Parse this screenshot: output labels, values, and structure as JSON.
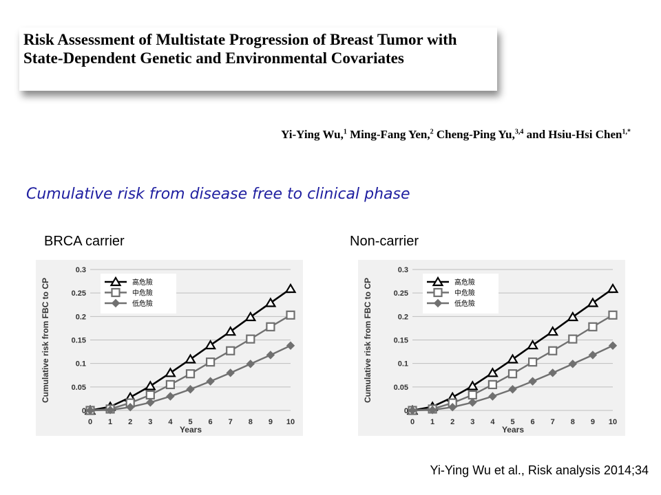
{
  "paper": {
    "title": "Risk Assessment of Multistate Progression of Breast Tumor with State-Dependent Genetic and Environmental Covariates",
    "authors": [
      {
        "name": "Yi-Ying Wu,",
        "sup": "1"
      },
      {
        "name": "Ming-Fang Yen,",
        "sup": "2"
      },
      {
        "name": "Cheng-Ping Yu,",
        "sup": "3,4"
      },
      {
        "name": "and Hsiu-Hsi Chen",
        "sup": "1,*"
      }
    ]
  },
  "subtitle": "Cumulative risk from disease free to clinical phase",
  "citation": "Yi-Ying Wu et al., Risk analysis 2014;34",
  "chart_data": [
    {
      "type": "line",
      "title": "BRCA carrier",
      "xlabel": "Years",
      "ylabel": "Cumulative risk from FBC to CP",
      "x": [
        0,
        1,
        2,
        3,
        4,
        5,
        6,
        7,
        8,
        9,
        10
      ],
      "xlim": [
        0,
        10
      ],
      "ylim": [
        0,
        0.3
      ],
      "yticks": [
        "0",
        "0.05",
        "0.1",
        "0.15",
        "0.2",
        "0.25",
        "0.3"
      ],
      "grid": true,
      "legend": "top-left",
      "series": [
        {
          "name": "高危險",
          "marker": "triangle",
          "color": "#000000",
          "values": [
            0,
            0.008,
            0.028,
            0.052,
            0.08,
            0.109,
            0.139,
            0.168,
            0.199,
            0.229,
            0.259
          ]
        },
        {
          "name": "中危險",
          "marker": "square",
          "color": "#707070",
          "values": [
            0,
            0.003,
            0.016,
            0.033,
            0.055,
            0.078,
            0.103,
            0.127,
            0.152,
            0.178,
            0.203
          ]
        },
        {
          "name": "低危險",
          "marker": "diamond",
          "color": "#707070",
          "values": [
            0,
            0.001,
            0.007,
            0.017,
            0.03,
            0.045,
            0.062,
            0.08,
            0.099,
            0.118,
            0.138
          ]
        }
      ]
    },
    {
      "type": "line",
      "title": "Non-carrier",
      "xlabel": "Years",
      "ylabel": "Cumulative risk from FBC to CP",
      "x": [
        0,
        1,
        2,
        3,
        4,
        5,
        6,
        7,
        8,
        9,
        10
      ],
      "xlim": [
        0,
        10
      ],
      "ylim": [
        0,
        0.3
      ],
      "yticks": [
        "0",
        "0.05",
        "0.1",
        "0.15",
        "0.2",
        "0.25",
        "0.3"
      ],
      "grid": true,
      "legend": "top-left",
      "series": [
        {
          "name": "高危險",
          "marker": "triangle",
          "color": "#000000",
          "values": [
            0,
            0.008,
            0.028,
            0.052,
            0.08,
            0.109,
            0.139,
            0.168,
            0.199,
            0.229,
            0.259
          ]
        },
        {
          "name": "中危險",
          "marker": "square",
          "color": "#707070",
          "values": [
            0,
            0.003,
            0.016,
            0.033,
            0.055,
            0.078,
            0.103,
            0.127,
            0.152,
            0.178,
            0.203
          ]
        },
        {
          "name": "低危險",
          "marker": "diamond",
          "color": "#707070",
          "values": [
            0,
            0.001,
            0.007,
            0.017,
            0.03,
            0.045,
            0.062,
            0.08,
            0.099,
            0.118,
            0.138
          ]
        }
      ]
    }
  ]
}
